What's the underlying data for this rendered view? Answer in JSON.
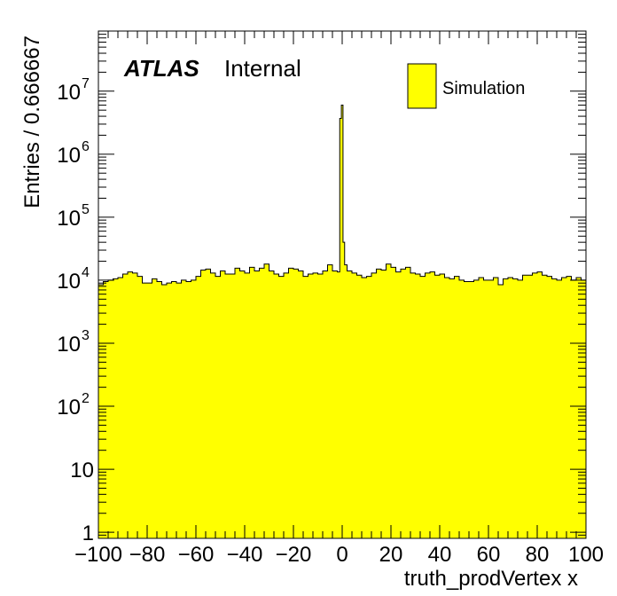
{
  "chart_data": {
    "type": "bar",
    "style": "filled-histogram",
    "fill_color": "#ffff00",
    "line_color": "#000000",
    "xlabel": "truth_prodVertex x",
    "ylabel": "Entries / 0.666667",
    "label_atlas": "ATLAS",
    "label_status": "Internal",
    "legend": {
      "entry": "Simulation",
      "placement": "top-right"
    },
    "xlim": [
      -100,
      100
    ],
    "ylim": [
      0.8,
      90000000
    ],
    "ylog": true,
    "bin_width": 0.666667,
    "x_ticks": [
      {
        "value": -100,
        "label": "−100"
      },
      {
        "value": -80,
        "label": "−80"
      },
      {
        "value": -60,
        "label": "−60"
      },
      {
        "value": -40,
        "label": "−40"
      },
      {
        "value": -20,
        "label": "−20"
      },
      {
        "value": 0,
        "label": "0"
      },
      {
        "value": 20,
        "label": "20"
      },
      {
        "value": 40,
        "label": "40"
      },
      {
        "value": 60,
        "label": "60"
      },
      {
        "value": 80,
        "label": "80"
      },
      {
        "value": 100,
        "label": "100"
      }
    ],
    "y_ticks": [
      {
        "value": 1,
        "base": "1",
        "exp": ""
      },
      {
        "value": 10,
        "base": "10",
        "exp": ""
      },
      {
        "value": 100,
        "base": "10",
        "exp": "2"
      },
      {
        "value": 1000,
        "base": "10",
        "exp": "3"
      },
      {
        "value": 10000,
        "base": "10",
        "exp": "4"
      },
      {
        "value": 100000,
        "base": "10",
        "exp": "5"
      },
      {
        "value": 1000000,
        "base": "10",
        "exp": "6"
      },
      {
        "value": 10000000,
        "base": "10",
        "exp": "7"
      }
    ],
    "series": [
      {
        "x_start": -100,
        "x_step": 2,
        "values": [
          8500,
          9500,
          10000,
          10500,
          11000,
          12500,
          13500,
          13000,
          11500,
          9000,
          9000,
          10500,
          9500,
          8500,
          9000,
          9500,
          9000,
          10000,
          9500,
          10000,
          11500,
          14500,
          15000,
          13000,
          11500,
          14000,
          12500,
          12500,
          15500,
          14000,
          13000,
          16000,
          14000,
          15500,
          18000,
          14000,
          12500,
          11500,
          13000,
          15500,
          15000,
          14000,
          11500,
          12500,
          13000,
          12500,
          14000,
          17500,
          14000,
          13500,
          17500,
          14000,
          13000,
          12000,
          11000,
          11500,
          13000,
          15000,
          14500,
          18000,
          16000,
          13500,
          15000,
          16000,
          13000,
          12500,
          11500,
          13000,
          13500,
          12000,
          12500,
          11000,
          10500,
          11500,
          10000,
          9500,
          9500,
          10000,
          11000,
          10000,
          10000,
          11000,
          8500,
          10500,
          11000,
          10500,
          10000,
          12000,
          12000,
          13000,
          13500,
          12000,
          11500,
          10500,
          10000,
          11000,
          11500,
          10000,
          11000,
          10000
        ]
      }
    ],
    "peak": [
      {
        "x": -0.667,
        "value": 3700000
      },
      {
        "x": 0,
        "value": 6000000
      },
      {
        "x": 0.667,
        "value": 40000
      }
    ]
  }
}
